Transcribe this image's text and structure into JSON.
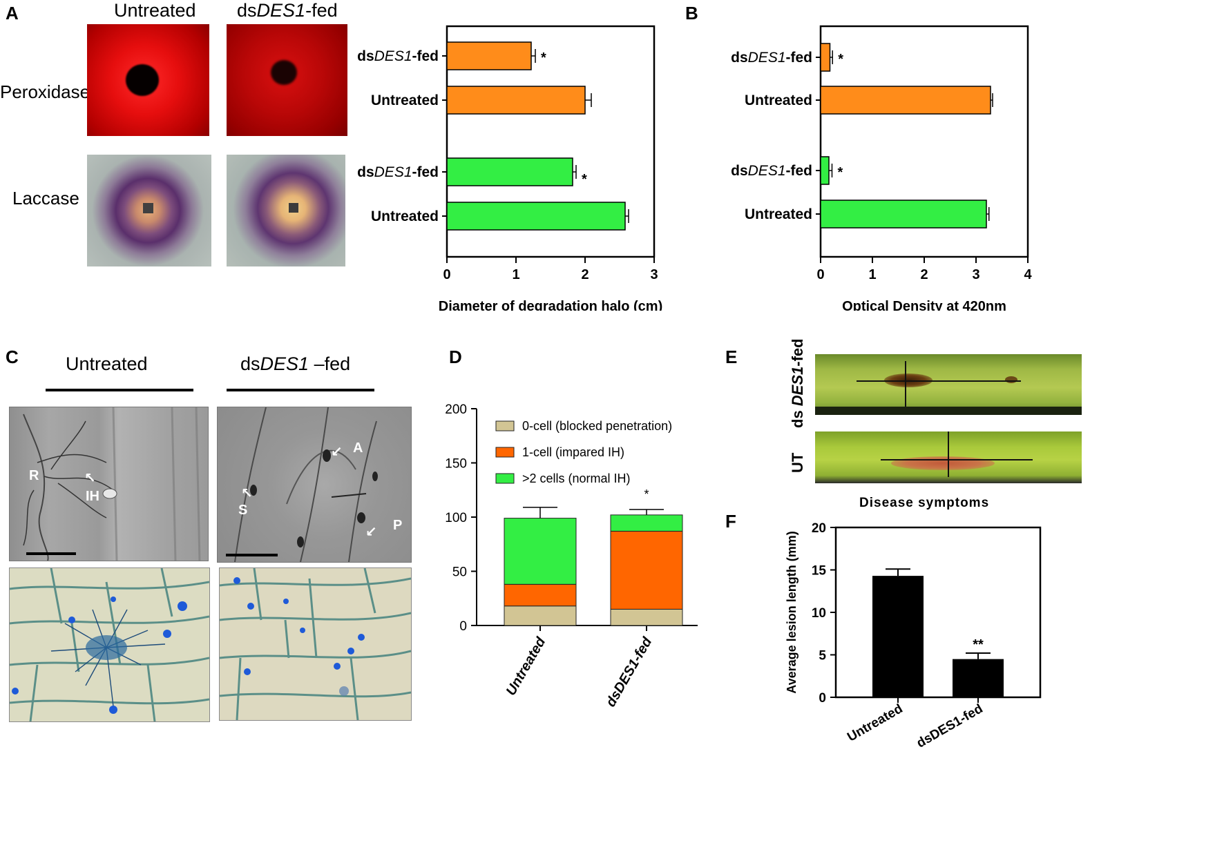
{
  "panels": {
    "a": "A",
    "b": "B",
    "c": "C",
    "d": "D",
    "e": "E",
    "f": "F"
  },
  "panel_a_images": {
    "col_untreated": "Untreated",
    "col_fed_prefix": "ds",
    "col_fed_italic": "DES1",
    "col_fed_suffix": "-fed",
    "row_peroxidase": "Peroxidase",
    "row_laccase": "Laccase"
  },
  "panel_c": {
    "col_untreated": "Untreated",
    "col_fed_prefix": "ds",
    "col_fed_italic": "DES1",
    "col_fed_suffix": " –fed",
    "labels": {
      "rl": "R",
      "ih": "IH",
      "a": "A",
      "s": "S",
      "p": "P"
    }
  },
  "panel_e": {
    "row_fed_prefix": "ds ",
    "row_fed_italic": "DES1",
    "row_fed_suffix": "-fed",
    "row_ut": "UT",
    "caption": "Disease symptoms"
  },
  "colors": {
    "orange": "#ff8c1a",
    "green": "#33ee44",
    "tan": "#d2c594",
    "dark_orange": "#ff6600",
    "black": "#000000"
  },
  "chart_data": [
    {
      "id": "A",
      "type": "bar",
      "orientation": "horizontal",
      "categories": [
        "dsDES1-fed",
        "Untreated",
        "dsDES1-fed",
        "Untreated"
      ],
      "category_parts": [
        [
          "ds",
          "DES1",
          "-fed"
        ],
        [
          "Untreated",
          "",
          ""
        ],
        [
          "ds",
          "DES1",
          "-fed"
        ],
        [
          "Untreated",
          "",
          ""
        ]
      ],
      "values": [
        1.22,
        2.0,
        1.82,
        2.58
      ],
      "errors": [
        0.06,
        0.09,
        0.05,
        0.05
      ],
      "colors": [
        "#ff8c1a",
        "#ff8c1a",
        "#33ee44",
        "#33ee44"
      ],
      "significance": [
        "*",
        "",
        "*",
        ""
      ],
      "xlabel": "Diameter of degradation halo (cm)",
      "xlim": [
        0,
        3
      ],
      "xticks": [
        "0",
        "1",
        "2",
        "3"
      ]
    },
    {
      "id": "B",
      "type": "bar",
      "orientation": "horizontal",
      "categories": [
        "dsDES1-fed",
        "Untreated",
        "dsDES1-fed",
        "Untreated"
      ],
      "category_parts": [
        [
          "ds",
          "DES1",
          "-fed"
        ],
        [
          "Untreated",
          "",
          ""
        ],
        [
          "ds",
          "DES1",
          "-fed"
        ],
        [
          "Untreated",
          "",
          ""
        ]
      ],
      "values": [
        0.18,
        3.28,
        0.16,
        3.2
      ],
      "errors": [
        0.05,
        0.04,
        0.06,
        0.05
      ],
      "colors": [
        "#ff8c1a",
        "#ff8c1a",
        "#33ee44",
        "#33ee44"
      ],
      "significance": [
        "*",
        "",
        "*",
        ""
      ],
      "xlabel": "Optical Density at 420nm",
      "xlim": [
        0,
        4
      ],
      "xticks": [
        "0",
        "1",
        "2",
        "3",
        "4"
      ]
    },
    {
      "id": "D",
      "type": "bar",
      "stacked": true,
      "categories": [
        "Untreated",
        "dsDES1-fed"
      ],
      "series": [
        {
          "name": "0-cell (blocked penetration)",
          "color": "#d2c594",
          "values": [
            18,
            15
          ],
          "errors": [
            6,
            5
          ]
        },
        {
          "name": "1-cell (impared IH)",
          "color": "#ff6600",
          "values": [
            20,
            72
          ],
          "errors": [
            6,
            7
          ]
        },
        {
          "name": ">2 cells (normal IH)",
          "color": "#33ee44",
          "values": [
            61,
            15
          ],
          "errors": [
            10,
            5
          ]
        }
      ],
      "significance": [
        "",
        "*"
      ],
      "ylim": [
        0,
        200
      ],
      "yticks": [
        "0",
        "50",
        "100",
        "150",
        "200"
      ],
      "legend": "top"
    },
    {
      "id": "F",
      "type": "bar",
      "categories": [
        "Untreated",
        "dsDES1-fed"
      ],
      "values": [
        14.3,
        4.5
      ],
      "errors": [
        0.8,
        0.7
      ],
      "significance": [
        "",
        "**"
      ],
      "ylabel": "Average lesion length (mm)",
      "ylim": [
        0,
        20
      ],
      "yticks": [
        "0",
        "5",
        "10",
        "15",
        "20"
      ]
    }
  ]
}
